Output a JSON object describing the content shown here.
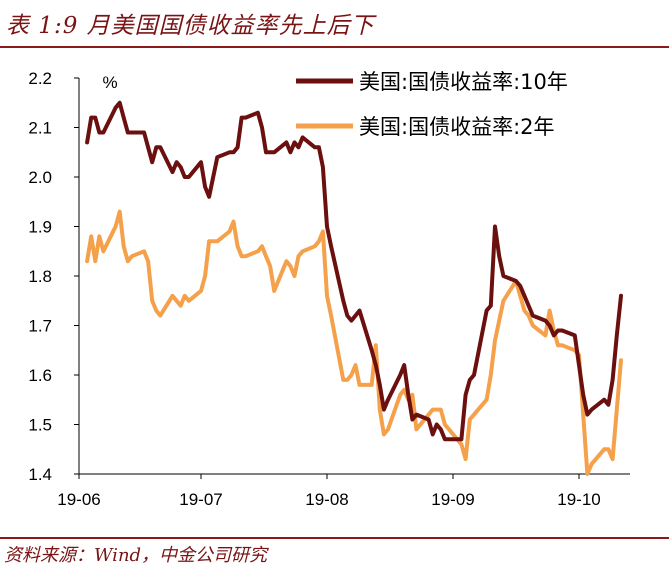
{
  "header": {
    "title": "表 1:9 月美国国债收益率先上后下"
  },
  "footer": {
    "source": "资料来源：Wind，中金公司研究"
  },
  "chart_data": {
    "type": "line",
    "title": "",
    "xlabel": "",
    "ylabel": "%",
    "ylim": [
      1.4,
      2.2
    ],
    "yticks": [
      "1.4",
      "1.5",
      "1.6",
      "1.7",
      "1.8",
      "1.9",
      "2.0",
      "2.1",
      "2.2"
    ],
    "xticks": [
      "19-06",
      "19-07",
      "19-08",
      "19-09",
      "19-10"
    ],
    "legend_position": "top-right",
    "grid": false,
    "colors": {
      "10y": "#6b0f0f",
      "2y": "#f5a04a"
    },
    "x": [
      "2019-06-03",
      "2019-06-04",
      "2019-06-05",
      "2019-06-06",
      "2019-06-07",
      "2019-06-10",
      "2019-06-11",
      "2019-06-12",
      "2019-06-13",
      "2019-06-14",
      "2019-06-17",
      "2019-06-18",
      "2019-06-19",
      "2019-06-20",
      "2019-06-21",
      "2019-06-24",
      "2019-06-25",
      "2019-06-26",
      "2019-06-27",
      "2019-06-28",
      "2019-07-01",
      "2019-07-02",
      "2019-07-03",
      "2019-07-05",
      "2019-07-08",
      "2019-07-09",
      "2019-07-10",
      "2019-07-11",
      "2019-07-12",
      "2019-07-15",
      "2019-07-16",
      "2019-07-17",
      "2019-07-18",
      "2019-07-19",
      "2019-07-22",
      "2019-07-23",
      "2019-07-24",
      "2019-07-25",
      "2019-07-26",
      "2019-07-29",
      "2019-07-30",
      "2019-07-31",
      "2019-08-01",
      "2019-08-02",
      "2019-08-05",
      "2019-08-06",
      "2019-08-07",
      "2019-08-08",
      "2019-08-09",
      "2019-08-12",
      "2019-08-13",
      "2019-08-14",
      "2019-08-15",
      "2019-08-16",
      "2019-08-19",
      "2019-08-20",
      "2019-08-21",
      "2019-08-22",
      "2019-08-23",
      "2019-08-26",
      "2019-08-27",
      "2019-08-28",
      "2019-08-29",
      "2019-08-30",
      "2019-09-03",
      "2019-09-04",
      "2019-09-05",
      "2019-09-06",
      "2019-09-09",
      "2019-09-10",
      "2019-09-11",
      "2019-09-12",
      "2019-09-13",
      "2019-09-16",
      "2019-09-17",
      "2019-09-18",
      "2019-09-19",
      "2019-09-20",
      "2019-09-23",
      "2019-09-24",
      "2019-09-25",
      "2019-09-26",
      "2019-09-27",
      "2019-09-30",
      "2019-10-01",
      "2019-10-02",
      "2019-10-03",
      "2019-10-04",
      "2019-10-07",
      "2019-10-08",
      "2019-10-09",
      "2019-10-10",
      "2019-10-11"
    ],
    "series": [
      {
        "name": "美国:国债收益率:10年",
        "key": "10y",
        "values": [
          2.07,
          2.12,
          2.12,
          2.09,
          2.09,
          2.14,
          2.15,
          2.12,
          2.09,
          2.09,
          2.09,
          2.06,
          2.03,
          2.06,
          2.06,
          2.01,
          2.03,
          2.02,
          2.0,
          2.0,
          2.03,
          1.98,
          1.96,
          2.04,
          2.05,
          2.05,
          2.06,
          2.12,
          2.12,
          2.13,
          2.1,
          2.05,
          2.05,
          2.05,
          2.07,
          2.05,
          2.07,
          2.06,
          2.08,
          2.06,
          2.06,
          2.02,
          1.9,
          1.86,
          1.75,
          1.72,
          1.71,
          1.72,
          1.73,
          1.65,
          1.62,
          1.58,
          1.53,
          1.55,
          1.6,
          1.62,
          1.56,
          1.51,
          1.52,
          1.51,
          1.48,
          1.5,
          1.49,
          1.47,
          1.47,
          1.56,
          1.59,
          1.6,
          1.73,
          1.74,
          1.9,
          1.84,
          1.8,
          1.79,
          1.78,
          1.76,
          1.74,
          1.72,
          1.71,
          1.7,
          1.68,
          1.69,
          1.69,
          1.68,
          1.62,
          1.56,
          1.52,
          1.53,
          1.55,
          1.54,
          1.59,
          1.68,
          1.76
        ]
      },
      {
        "name": "美国:国债收益率:2年",
        "key": "2y",
        "values": [
          1.83,
          1.88,
          1.83,
          1.88,
          1.85,
          1.9,
          1.93,
          1.86,
          1.83,
          1.84,
          1.85,
          1.83,
          1.75,
          1.73,
          1.72,
          1.76,
          1.75,
          1.74,
          1.76,
          1.75,
          1.77,
          1.8,
          1.87,
          1.87,
          1.89,
          1.91,
          1.86,
          1.84,
          1.84,
          1.85,
          1.86,
          1.84,
          1.82,
          1.77,
          1.83,
          1.82,
          1.8,
          1.84,
          1.85,
          1.86,
          1.87,
          1.89,
          1.76,
          1.72,
          1.59,
          1.59,
          1.6,
          1.62,
          1.58,
          1.58,
          1.66,
          1.53,
          1.48,
          1.49,
          1.56,
          1.57,
          1.55,
          1.56,
          1.49,
          1.52,
          1.53,
          1.53,
          1.53,
          1.5,
          1.46,
          1.43,
          1.51,
          1.52,
          1.55,
          1.6,
          1.67,
          1.71,
          1.75,
          1.79,
          1.76,
          1.73,
          1.72,
          1.7,
          1.68,
          1.73,
          1.69,
          1.66,
          1.66,
          1.65,
          1.64,
          1.52,
          1.4,
          1.42,
          1.45,
          1.45,
          1.43,
          1.53,
          1.63
        ]
      }
    ]
  }
}
